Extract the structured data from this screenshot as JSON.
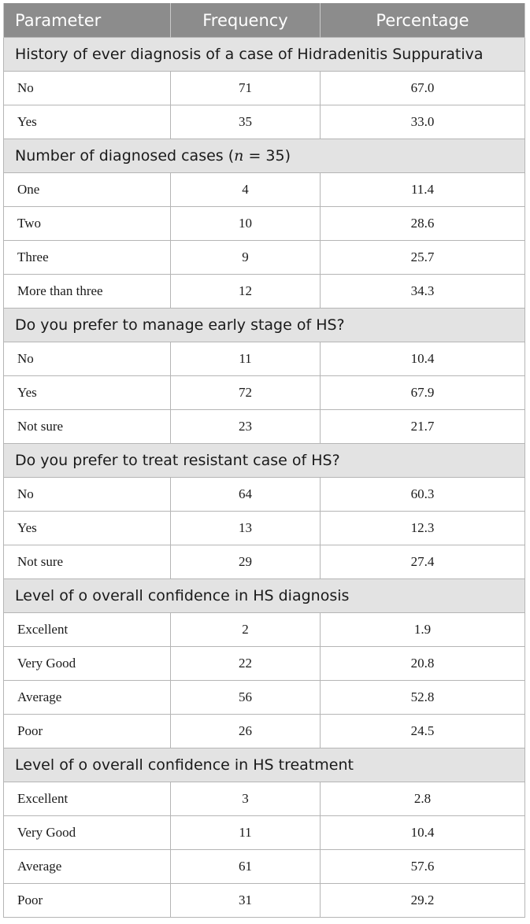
{
  "table": {
    "headers": [
      "Parameter",
      "Frequency",
      "Percentage"
    ],
    "sections": [
      {
        "title": "History of ever diagnosis of a case of Hidradenitis Suppurativa",
        "rows": [
          {
            "label": "No",
            "frequency": "71",
            "percentage": "67.0"
          },
          {
            "label": "Yes",
            "frequency": "35",
            "percentage": "33.0"
          }
        ]
      },
      {
        "title_pre": "Number of diagnosed cases (",
        "title_n": "n",
        "title_post": " = 35)",
        "rows": [
          {
            "label": "One",
            "frequency": "4",
            "percentage": "11.4"
          },
          {
            "label": "Two",
            "frequency": "10",
            "percentage": "28.6"
          },
          {
            "label": "Three",
            "frequency": "9",
            "percentage": "25.7"
          },
          {
            "label": "More than three",
            "frequency": "12",
            "percentage": "34.3"
          }
        ]
      },
      {
        "title": "Do you prefer to manage early stage of HS?",
        "rows": [
          {
            "label": "No",
            "frequency": "11",
            "percentage": "10.4"
          },
          {
            "label": "Yes",
            "frequency": "72",
            "percentage": "67.9"
          },
          {
            "label": "Not sure",
            "frequency": "23",
            "percentage": "21.7"
          }
        ]
      },
      {
        "title": "Do you prefer to treat resistant case of HS?",
        "rows": [
          {
            "label": "No",
            "frequency": "64",
            "percentage": "60.3"
          },
          {
            "label": "Yes",
            "frequency": "13",
            "percentage": "12.3"
          },
          {
            "label": "Not sure",
            "frequency": "29",
            "percentage": "27.4"
          }
        ]
      },
      {
        "title": "Level of o overall confidence in HS diagnosis",
        "rows": [
          {
            "label": "Excellent",
            "frequency": "2",
            "percentage": "1.9"
          },
          {
            "label": "Very Good",
            "frequency": "22",
            "percentage": "20.8"
          },
          {
            "label": "Average",
            "frequency": "56",
            "percentage": "52.8"
          },
          {
            "label": "Poor",
            "frequency": "26",
            "percentage": "24.5"
          }
        ]
      },
      {
        "title": "Level of o overall confidence in HS treatment",
        "rows": [
          {
            "label": "Excellent",
            "frequency": "3",
            "percentage": "2.8"
          },
          {
            "label": "Very Good",
            "frequency": "11",
            "percentage": "10.4"
          },
          {
            "label": "Average",
            "frequency": "61",
            "percentage": "57.6"
          },
          {
            "label": "Poor",
            "frequency": "31",
            "percentage": "29.2"
          }
        ]
      }
    ]
  }
}
